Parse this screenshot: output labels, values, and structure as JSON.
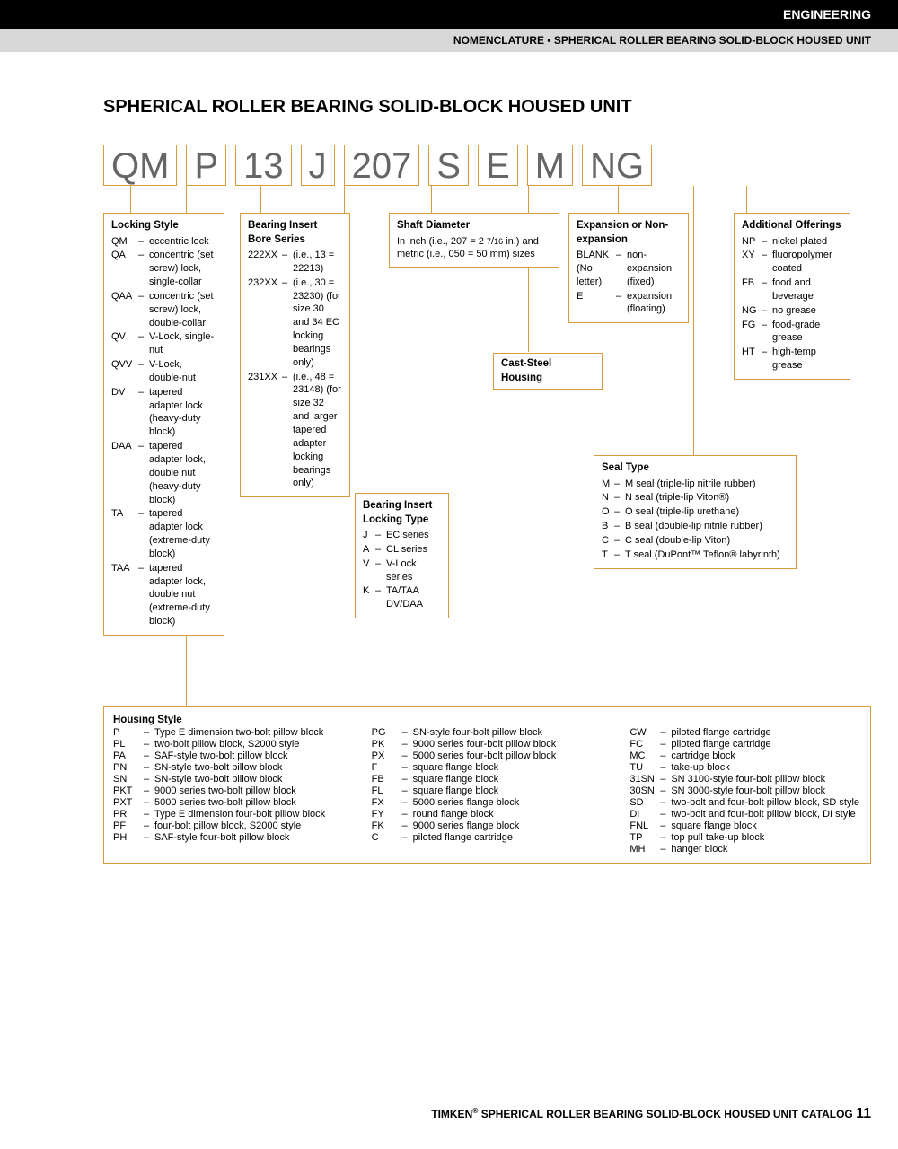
{
  "header": {
    "black_bar": "ENGINEERING",
    "gray_bar": "NOMENCLATURE • SPHERICAL ROLLER BEARING SOLID-BLOCK HOUSED UNIT"
  },
  "title": "SPHERICAL ROLLER BEARING SOLID-BLOCK HOUSED UNIT",
  "code_parts": [
    "QM",
    "P",
    "13",
    "J",
    "207",
    "S",
    "E",
    "M",
    "NG"
  ],
  "locking_style": {
    "title": "Locking Style",
    "items": [
      {
        "c": "QM",
        "d": "eccentric lock"
      },
      {
        "c": "QA",
        "d": "concentric (set screw) lock, single-collar"
      },
      {
        "c": "QAA",
        "d": "concentric (set screw) lock, double-collar"
      },
      {
        "c": "QV",
        "d": "V-Lock, single-nut"
      },
      {
        "c": "QVV",
        "d": "V-Lock, double-nut"
      },
      {
        "c": "DV",
        "d": "tapered adapter lock (heavy-duty block)"
      },
      {
        "c": "DAA",
        "d": "tapered adapter lock, double nut (heavy-duty block)"
      },
      {
        "c": "TA",
        "d": "tapered adapter lock (extreme-duty block)"
      },
      {
        "c": "TAA",
        "d": "tapered adapter lock, double nut (extreme-duty block)"
      }
    ]
  },
  "bore_series": {
    "title": "Bearing Insert Bore Series",
    "items": [
      {
        "c": "222XX",
        "d": "(i.e., 13 = 22213)"
      },
      {
        "c": "232XX",
        "d": "(i.e., 30 = 23230) (for size 30 and 34 EC locking bearings only)"
      },
      {
        "c": "231XX",
        "d": "(i.e., 48 = 23148) (for size 32 and larger tapered adapter locking bearings only)"
      }
    ]
  },
  "locking_type": {
    "title": "Bearing Insert Locking Type",
    "items": [
      {
        "c": "J",
        "d": "EC series"
      },
      {
        "c": "A",
        "d": "CL series"
      },
      {
        "c": "V",
        "d": "V-Lock series"
      },
      {
        "c": "K",
        "d": "TA/TAA DV/DAA"
      }
    ]
  },
  "shaft_diameter": {
    "title": "Shaft Diameter",
    "desc_a": "In inch (i.e., 207 = 2 ",
    "desc_frac_n": "7",
    "desc_frac_d": "16",
    "desc_b": " in.) and metric (i.e., 050 = 50 mm) sizes"
  },
  "cast_steel": {
    "title": "Cast-Steel Housing"
  },
  "expansion": {
    "title": "Expansion or Non-expansion",
    "items": [
      {
        "c": "BLANK (No letter)",
        "d": "non-expansion (fixed)"
      },
      {
        "c": "E",
        "d": "expansion (floating)"
      }
    ]
  },
  "seal_type": {
    "title": "Seal Type",
    "items": [
      {
        "c": "M",
        "d": "M seal (triple-lip nitrile rubber)"
      },
      {
        "c": "N",
        "d": "N seal (triple-lip Viton®)"
      },
      {
        "c": "O",
        "d": "O seal (triple-lip urethane)"
      },
      {
        "c": "B",
        "d": "B seal (double-lip nitrile rubber)"
      },
      {
        "c": "C",
        "d": "C seal (double-lip Viton)"
      },
      {
        "c": "T",
        "d": "T seal (DuPont™ Teflon® labyrinth)"
      }
    ]
  },
  "offerings": {
    "title": "Additional Offerings",
    "items": [
      {
        "c": "NP",
        "d": "nickel plated"
      },
      {
        "c": "XY",
        "d": "fluoropolymer coated"
      },
      {
        "c": "FB",
        "d": "food and beverage"
      },
      {
        "c": "NG",
        "d": "no grease"
      },
      {
        "c": "FG",
        "d": "food-grade grease"
      },
      {
        "c": "HT",
        "d": "high-temp grease"
      }
    ]
  },
  "housing_style": {
    "title": "Housing Style",
    "col1": [
      {
        "c": "P",
        "d": "Type E dimension two-bolt pillow block"
      },
      {
        "c": "PL",
        "d": "two-bolt pillow block, S2000 style"
      },
      {
        "c": "PA",
        "d": "SAF-style two-bolt pillow block"
      },
      {
        "c": "PN",
        "d": "SN-style two-bolt pillow block"
      },
      {
        "c": "SN",
        "d": "SN-style two-bolt pillow block"
      },
      {
        "c": "PKT",
        "d": "9000 series two-bolt pillow block"
      },
      {
        "c": "PXT",
        "d": "5000 series two-bolt pillow block"
      },
      {
        "c": "PR",
        "d": "Type E dimension four-bolt pillow block"
      },
      {
        "c": "PF",
        "d": "four-bolt pillow block, S2000 style"
      },
      {
        "c": "PH",
        "d": "SAF-style four-bolt pillow block"
      }
    ],
    "col2": [
      {
        "c": "PG",
        "d": "SN-style four-bolt pillow block"
      },
      {
        "c": "PK",
        "d": "9000 series four-bolt pillow block"
      },
      {
        "c": "PX",
        "d": "5000 series four-bolt pillow block"
      },
      {
        "c": "F",
        "d": "square flange block"
      },
      {
        "c": "FB",
        "d": "square flange block"
      },
      {
        "c": "FL",
        "d": "square flange block"
      },
      {
        "c": "FX",
        "d": "5000 series flange block"
      },
      {
        "c": "FY",
        "d": "round flange block"
      },
      {
        "c": "FK",
        "d": "9000 series flange block"
      },
      {
        "c": "C",
        "d": "piloted flange cartridge"
      }
    ],
    "col3": [
      {
        "c": "CW",
        "d": "piloted flange cartridge"
      },
      {
        "c": "FC",
        "d": "piloted flange cartridge"
      },
      {
        "c": "MC",
        "d": "cartridge block"
      },
      {
        "c": "TU",
        "d": "take-up block"
      },
      {
        "c": "31SN",
        "d": "SN 3100-style four-bolt pillow block"
      },
      {
        "c": "30SN",
        "d": "SN 3000-style four-bolt pillow block"
      },
      {
        "c": "SD",
        "d": "two-bolt and four-bolt pillow block, SD style"
      },
      {
        "c": "DI",
        "d": "two-bolt and four-bolt pillow block, DI style"
      },
      {
        "c": "FNL",
        "d": "square flange block"
      },
      {
        "c": "TP",
        "d": "top pull take-up block"
      },
      {
        "c": "MH",
        "d": "hanger block"
      }
    ]
  },
  "footer_a": "TIMKEN",
  "footer_b": " SPHERICAL ROLLER BEARING SOLID-BLOCK HOUSED UNIT CATALOG ",
  "footer_page": "11"
}
